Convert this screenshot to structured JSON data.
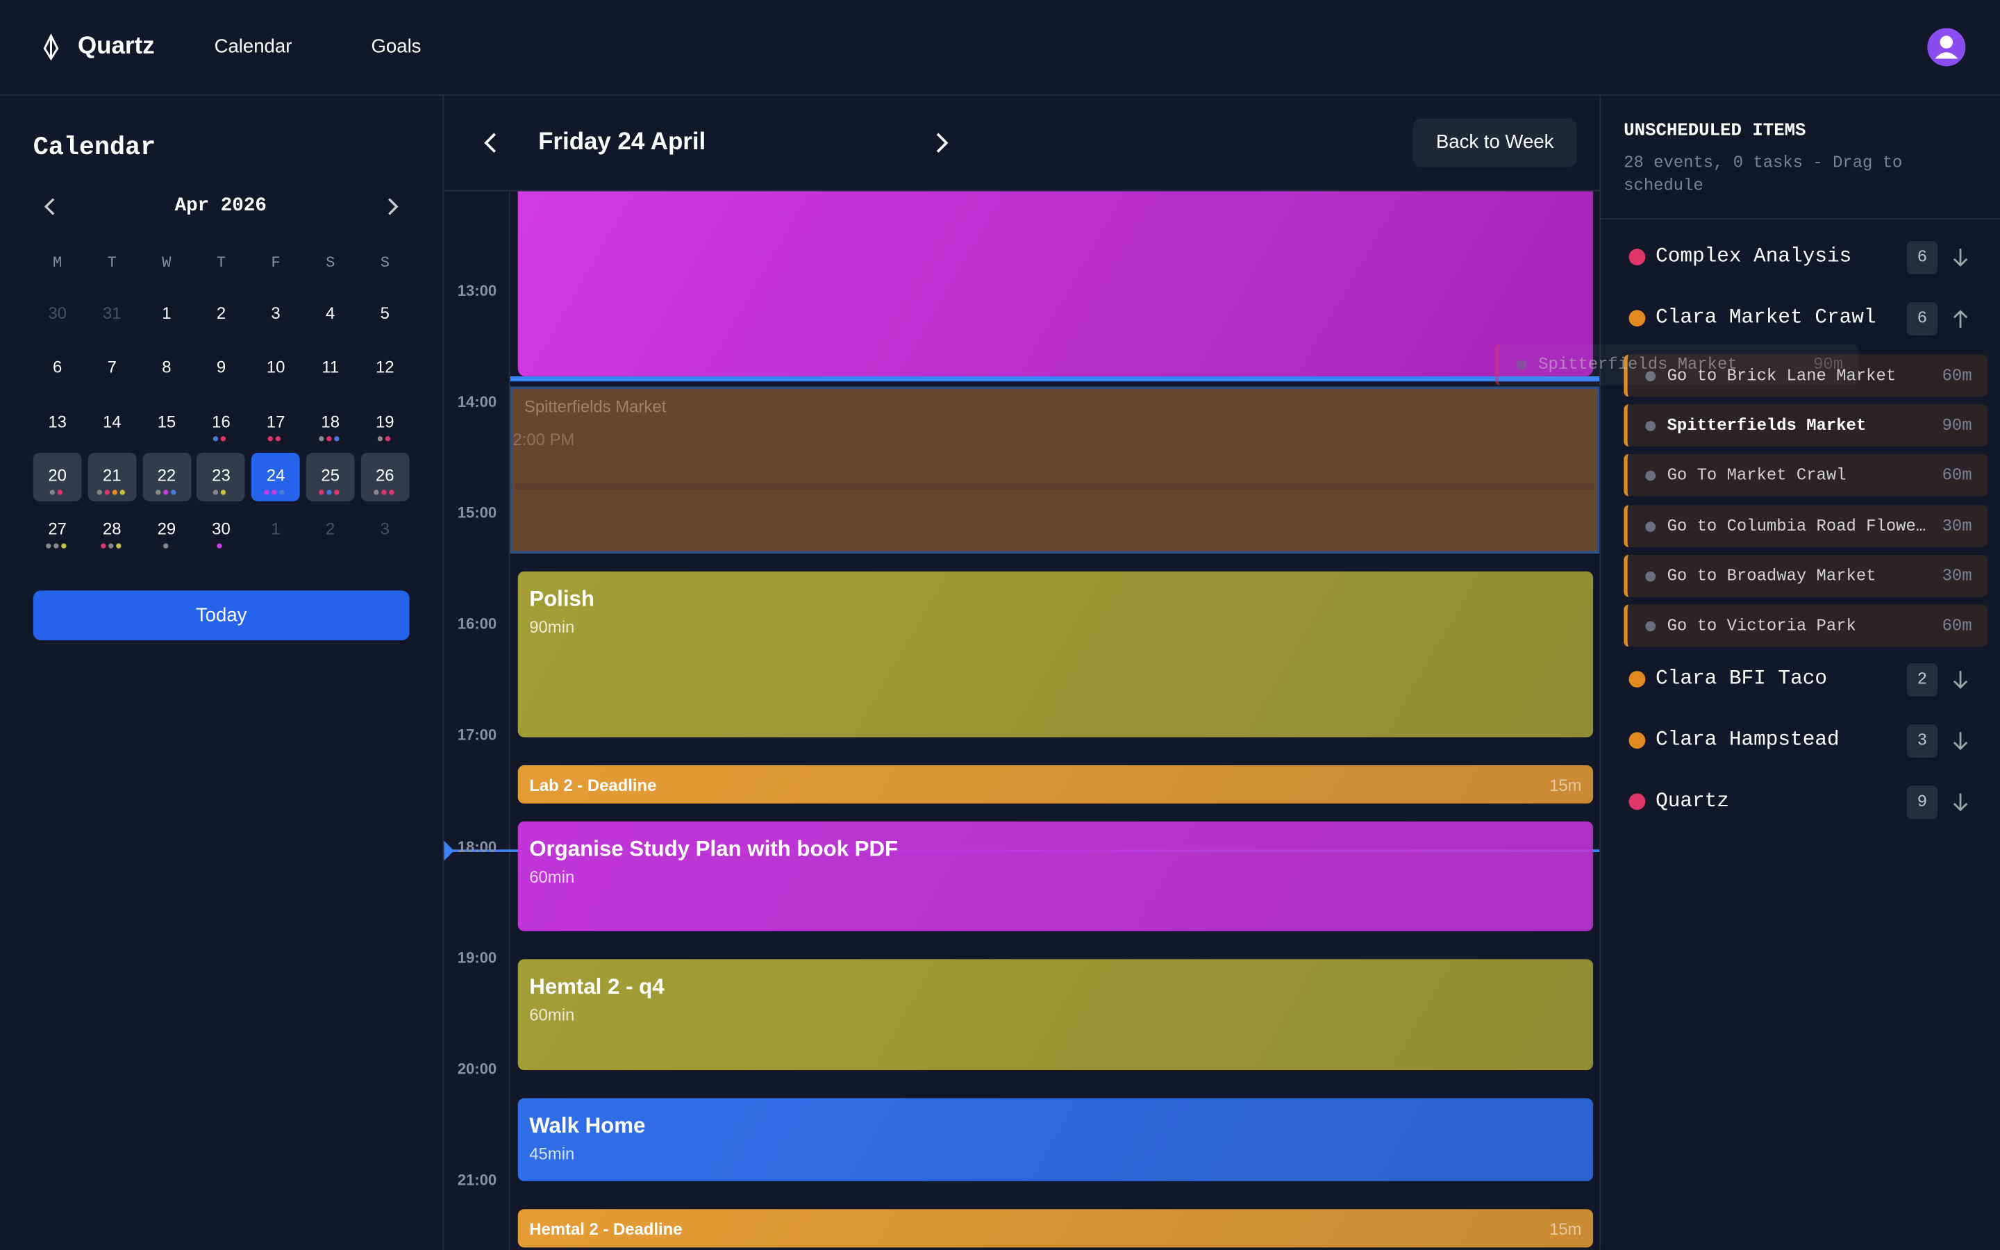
{
  "header": {
    "brand": "Quartz",
    "nav": [
      "Calendar",
      "Goals"
    ]
  },
  "sidebar": {
    "title": "Calendar",
    "month": "Apr 2026",
    "weekdays": [
      "M",
      "T",
      "W",
      "T",
      "F",
      "S",
      "S"
    ],
    "days": [
      30,
      31,
      1,
      2,
      3,
      4,
      5,
      6,
      7,
      8,
      9,
      10,
      11,
      12,
      13,
      14,
      15,
      16,
      17,
      18,
      19,
      20,
      21,
      22,
      23,
      24,
      25,
      26,
      27,
      28,
      29,
      30,
      1,
      2,
      3
    ],
    "dots": [
      [],
      [],
      [],
      [],
      [],
      [],
      [],
      [],
      [],
      [],
      [],
      [],
      [],
      [],
      [],
      [],
      [],
      [
        "#4a7bd8",
        "#e0356a"
      ],
      [
        "#e0356a",
        "#e0356a"
      ],
      [
        "#888",
        "#e0356a",
        "#4a7bd8"
      ],
      [
        "#888",
        "#e0356a"
      ],
      [
        "#888",
        "#e0356a"
      ],
      [
        "#888",
        "#e0356a",
        "#e08a20",
        "#c8c040"
      ],
      [
        "#888",
        "#c93ce0",
        "#4a7bd8"
      ],
      [
        "#888",
        "#c8c040"
      ],
      [
        "#c93ce0",
        "#c93ce0",
        "#4a7bd8"
      ],
      [
        "#e0356a",
        "#4a7bd8",
        "#e0356a"
      ],
      [
        "#888",
        "#e0356a",
        "#e0356a"
      ],
      [
        "#888",
        "#888",
        "#c8c040"
      ],
      [
        "#e0356a",
        "#888",
        "#c8c040"
      ],
      [
        "#888"
      ],
      [
        "#c93ce0"
      ],
      [],
      [],
      []
    ],
    "today_button": "Today"
  },
  "day_view": {
    "title": "Friday 24 April",
    "back_button": "Back to Week",
    "hours": [
      "13:00",
      "14:00",
      "15:00",
      "16:00",
      "17:00",
      "18:00",
      "19:00",
      "20:00",
      "21:00"
    ],
    "ghost": {
      "title": "Spitterfields Market",
      "time": "2:00 PM"
    },
    "events": [
      {
        "title": "Polish",
        "duration": "90min",
        "color": "#a39e36"
      },
      {
        "title": "Lab 2 - Deadline",
        "duration": "15m",
        "color": "#e59c35"
      },
      {
        "title": "Organise Study Plan with book PDF",
        "duration": "60min",
        "color": "#c235d9"
      },
      {
        "title": "Hemtal 2 - q4",
        "duration": "60min",
        "color": "#a39e36"
      },
      {
        "title": "Walk Home",
        "duration": "45min",
        "color": "#2f6ee8"
      },
      {
        "title": "Hemtal 2 - Deadline",
        "duration": "15m",
        "color": "#e59c35"
      }
    ]
  },
  "unscheduled": {
    "title": "UNSCHEDULED ITEMS",
    "subtitle": "28 events, 0 tasks - Drag to schedule",
    "drag_item": {
      "name": "Spitterfields Market",
      "duration": "90m"
    },
    "groups": [
      {
        "name": "Complex Analysis",
        "count": 6,
        "color": "#e0356a"
      },
      {
        "name": "Clara Market Crawl",
        "count": 6,
        "color": "#e08a20",
        "items": [
          {
            "name": "Go to Brick Lane Market",
            "duration": "60m"
          },
          {
            "name": "Spitterfields Market",
            "duration": "90m"
          },
          {
            "name": "Go To Market Crawl",
            "duration": "60m"
          },
          {
            "name": "Go to Columbia Road Flowe…",
            "duration": "30m"
          },
          {
            "name": "Go to Broadway Market",
            "duration": "30m"
          },
          {
            "name": "Go to Victoria Park",
            "duration": "60m"
          }
        ]
      },
      {
        "name": "Clara BFI Taco",
        "count": 2,
        "color": "#e08a20"
      },
      {
        "name": "Clara Hampstead",
        "count": 3,
        "color": "#e08a20"
      },
      {
        "name": "Quartz",
        "count": 9,
        "color": "#e0356a"
      }
    ]
  }
}
